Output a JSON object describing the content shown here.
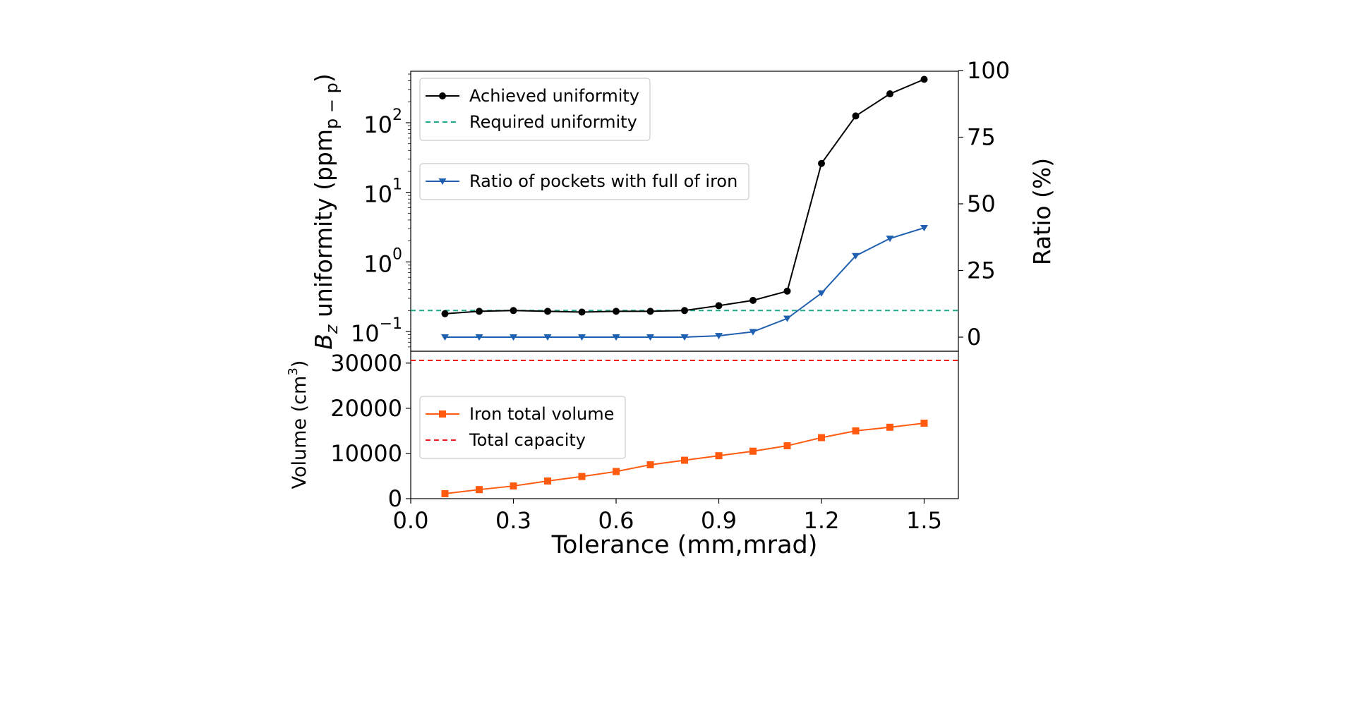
{
  "chart_data": [
    {
      "type": "line",
      "panel": "top",
      "xlabel": "Tolerance (mm,mrad)",
      "xlim": [
        0.0,
        1.6
      ],
      "x_ticks": [
        "0.0",
        "0.3",
        "0.6",
        "0.9",
        "1.2",
        "1.5"
      ],
      "ylabel_left": {
        "base": "B",
        "sub1": "z",
        "mid": " uniformity (ppm",
        "sub2": "p − p",
        "end": ")"
      },
      "ylabel_right": "Ratio (%)",
      "y_left_scale": "log",
      "y_left_ticks": [
        {
          "base": "10",
          "exp": "−1",
          "value": 0.1
        },
        {
          "base": "10",
          "exp": "0",
          "value": 1
        },
        {
          "base": "10",
          "exp": "1",
          "value": 10
        },
        {
          "base": "10",
          "exp": "2",
          "value": 100
        }
      ],
      "y_right_ticks": [
        "0",
        "25",
        "50",
        "75",
        "100"
      ],
      "y_right_lim": [
        -5,
        100
      ],
      "series": [
        {
          "name": "Achieved uniformity",
          "axis": "left",
          "color": "#000000",
          "marker": "circle",
          "x": [
            0.1,
            0.2,
            0.3,
            0.4,
            0.5,
            0.6,
            0.7,
            0.8,
            0.9,
            1.0,
            1.1,
            1.2,
            1.3,
            1.4,
            1.5
          ],
          "y": [
            0.18,
            0.195,
            0.2,
            0.195,
            0.19,
            0.195,
            0.195,
            0.2,
            0.235,
            0.28,
            0.38,
            26,
            125,
            260,
            420
          ]
        },
        {
          "name": "Required uniformity",
          "axis": "left",
          "color": "#20a98a",
          "style": "dashed",
          "y": 0.2
        },
        {
          "name": "Ratio of pockets with full of iron",
          "axis": "right",
          "color": "#1f5fb0",
          "marker": "triangle-down",
          "x": [
            0.1,
            0.2,
            0.3,
            0.4,
            0.5,
            0.6,
            0.7,
            0.8,
            0.9,
            1.0,
            1.1,
            1.2,
            1.3,
            1.4,
            1.5
          ],
          "y": [
            0,
            0,
            0,
            0,
            0,
            0,
            0,
            0,
            0.5,
            2,
            7,
            16.5,
            30.5,
            37,
            41
          ]
        }
      ]
    },
    {
      "type": "line",
      "panel": "bottom",
      "ylabel": {
        "main": "Volume (cm",
        "sup": "3",
        "end": ")"
      },
      "ylim": [
        0,
        32000
      ],
      "y_ticks": [
        "0",
        "10000",
        "20000",
        "30000"
      ],
      "series": [
        {
          "name": "Iron total volume",
          "color": "#ff5a0d",
          "marker": "square",
          "x": [
            0.1,
            0.2,
            0.3,
            0.4,
            0.5,
            0.6,
            0.7,
            0.8,
            0.9,
            1.0,
            1.1,
            1.2,
            1.3,
            1.4,
            1.5
          ],
          "y": [
            1100,
            2000,
            2800,
            3900,
            4900,
            6000,
            7500,
            8500,
            9500,
            10500,
            11700,
            13500,
            15000,
            15800,
            16700
          ]
        },
        {
          "name": "Total capacity",
          "color": "#ee1c1c",
          "style": "dashed",
          "y": 30600
        }
      ]
    }
  ]
}
